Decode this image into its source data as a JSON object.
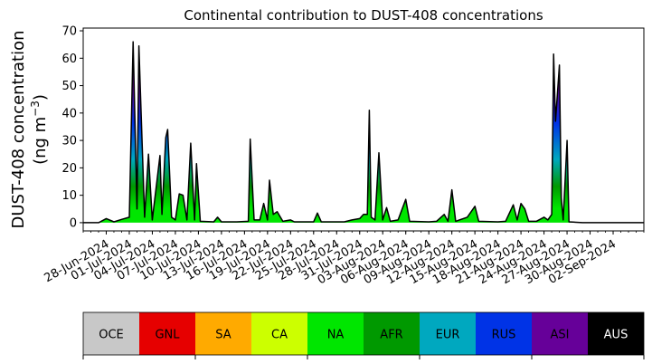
{
  "chart_data": {
    "type": "area",
    "title": "Continental contribution to DUST-408 concentrations",
    "ylabel_line1": "DUST-408 concentration",
    "ylabel_line2_prefix": "(ng m",
    "ylabel_line2_sup": "−3",
    "ylabel_line2_suffix": ")",
    "xlabel": "",
    "ylim": [
      -3,
      71
    ],
    "yticks": [
      0,
      10,
      20,
      30,
      40,
      50,
      60,
      70
    ],
    "x_range": [
      "2024-06-25",
      "2024-09-06"
    ],
    "xtick_labels": [
      "28-Jun-2024",
      "01-Jul-2024",
      "04-Jul-2024",
      "07-Jul-2024",
      "10-Jul-2024",
      "13-Jul-2024",
      "16-Jul-2024",
      "19-Jul-2024",
      "22-Jul-2024",
      "25-Jul-2024",
      "28-Jul-2024",
      "31-Jul-2024",
      "03-Aug-2024",
      "06-Aug-2024",
      "09-Aug-2024",
      "12-Aug-2024",
      "15-Aug-2024",
      "18-Aug-2024",
      "21-Aug-2024",
      "24-Aug-2024",
      "27-Aug-2024",
      "30-Aug-2024",
      "02-Sep-2024"
    ],
    "grid": false,
    "legend_placement": "below",
    "categories": [
      "OCE",
      "GNL",
      "SA",
      "CA",
      "NA",
      "AFR",
      "EUR",
      "RUS",
      "ASI",
      "AUS"
    ],
    "colors": [
      "#c8c8c8",
      "#e60000",
      "#ffaa00",
      "#ccff00",
      "#00e600",
      "#009900",
      "#00a8bf",
      "#0033e6",
      "#660099",
      "#000000"
    ],
    "legend_text_colors": [
      "#000000",
      "#000000",
      "#000000",
      "#000000",
      "#000000",
      "#000000",
      "#000000",
      "#000000",
      "#000000",
      "#ffffff"
    ],
    "total": [
      {
        "x": "2024-06-25",
        "y": 0
      },
      {
        "x": "2024-06-27",
        "y": 0
      },
      {
        "x": "2024-06-28",
        "y": 1.5
      },
      {
        "x": "2024-06-29",
        "y": 0.3
      },
      {
        "x": "2024-06-30",
        "y": 1.2
      },
      {
        "x": "2024-07-01",
        "y": 2
      },
      {
        "x": "2024-07-01T12:00",
        "y": 66
      },
      {
        "x": "2024-07-02",
        "y": 5
      },
      {
        "x": "2024-07-02T06:00",
        "y": 64.5
      },
      {
        "x": "2024-07-03",
        "y": 2
      },
      {
        "x": "2024-07-03T12:00",
        "y": 25
      },
      {
        "x": "2024-07-04",
        "y": 1
      },
      {
        "x": "2024-07-05",
        "y": 24.5
      },
      {
        "x": "2024-07-05T06:00",
        "y": 3
      },
      {
        "x": "2024-07-05T18:00",
        "y": 31
      },
      {
        "x": "2024-07-06",
        "y": 34
      },
      {
        "x": "2024-07-06T12:00",
        "y": 2
      },
      {
        "x": "2024-07-07",
        "y": 1
      },
      {
        "x": "2024-07-07T12:00",
        "y": 10.5
      },
      {
        "x": "2024-07-08",
        "y": 10
      },
      {
        "x": "2024-07-08T12:00",
        "y": 1
      },
      {
        "x": "2024-07-09",
        "y": 29
      },
      {
        "x": "2024-07-09T12:00",
        "y": 1
      },
      {
        "x": "2024-07-09T18:00",
        "y": 21.5
      },
      {
        "x": "2024-07-10T06:00",
        "y": 0.5
      },
      {
        "x": "2024-07-12",
        "y": 0.3
      },
      {
        "x": "2024-07-12T12:00",
        "y": 2
      },
      {
        "x": "2024-07-13",
        "y": 0.3
      },
      {
        "x": "2024-07-15",
        "y": 0.3
      },
      {
        "x": "2024-07-16T12:00",
        "y": 0.5
      },
      {
        "x": "2024-07-16T18:00",
        "y": 30.5
      },
      {
        "x": "2024-07-17T06:00",
        "y": 1
      },
      {
        "x": "2024-07-18",
        "y": 1
      },
      {
        "x": "2024-07-18T12:00",
        "y": 7
      },
      {
        "x": "2024-07-19",
        "y": 1
      },
      {
        "x": "2024-07-19T06:00",
        "y": 15.5
      },
      {
        "x": "2024-07-19T18:00",
        "y": 3
      },
      {
        "x": "2024-07-20T06:00",
        "y": 4
      },
      {
        "x": "2024-07-21",
        "y": 0.5
      },
      {
        "x": "2024-07-22",
        "y": 1
      },
      {
        "x": "2024-07-22T12:00",
        "y": 0.3
      },
      {
        "x": "2024-07-25",
        "y": 0.3
      },
      {
        "x": "2024-07-25T12:00",
        "y": 3.5
      },
      {
        "x": "2024-07-26",
        "y": 0.3
      },
      {
        "x": "2024-07-29",
        "y": 0.3
      },
      {
        "x": "2024-07-30",
        "y": 1
      },
      {
        "x": "2024-07-31",
        "y": 1.5
      },
      {
        "x": "2024-07-31T12:00",
        "y": 3
      },
      {
        "x": "2024-08-01",
        "y": 3
      },
      {
        "x": "2024-08-01T06:00",
        "y": 41
      },
      {
        "x": "2024-08-01T12:00",
        "y": 2
      },
      {
        "x": "2024-08-02",
        "y": 1
      },
      {
        "x": "2024-08-02T12:00",
        "y": 25.5
      },
      {
        "x": "2024-08-03",
        "y": 1
      },
      {
        "x": "2024-08-03T12:00",
        "y": 5.5
      },
      {
        "x": "2024-08-04",
        "y": 0.5
      },
      {
        "x": "2024-08-05",
        "y": 1
      },
      {
        "x": "2024-08-06",
        "y": 8.5
      },
      {
        "x": "2024-08-06T12:00",
        "y": 0.5
      },
      {
        "x": "2024-08-09",
        "y": 0.3
      },
      {
        "x": "2024-08-10",
        "y": 0.5
      },
      {
        "x": "2024-08-11",
        "y": 3
      },
      {
        "x": "2024-08-11T12:00",
        "y": 0.5
      },
      {
        "x": "2024-08-12",
        "y": 12
      },
      {
        "x": "2024-08-12T12:00",
        "y": 0.5
      },
      {
        "x": "2024-08-14",
        "y": 2
      },
      {
        "x": "2024-08-15",
        "y": 6
      },
      {
        "x": "2024-08-15T12:00",
        "y": 0.5
      },
      {
        "x": "2024-08-18",
        "y": 0.3
      },
      {
        "x": "2024-08-19",
        "y": 0.5
      },
      {
        "x": "2024-08-20",
        "y": 6.5
      },
      {
        "x": "2024-08-20T12:00",
        "y": 1
      },
      {
        "x": "2024-08-21",
        "y": 7
      },
      {
        "x": "2024-08-21T12:00",
        "y": 5
      },
      {
        "x": "2024-08-22",
        "y": 0.5
      },
      {
        "x": "2024-08-23",
        "y": 0.5
      },
      {
        "x": "2024-08-24",
        "y": 2
      },
      {
        "x": "2024-08-24T12:00",
        "y": 1
      },
      {
        "x": "2024-08-25",
        "y": 3
      },
      {
        "x": "2024-08-25T06:00",
        "y": 61.5
      },
      {
        "x": "2024-08-25T12:00",
        "y": 37
      },
      {
        "x": "2024-08-26",
        "y": 57.5
      },
      {
        "x": "2024-08-26T06:00",
        "y": 9
      },
      {
        "x": "2024-08-26T12:00",
        "y": 1
      },
      {
        "x": "2024-08-27",
        "y": 30
      },
      {
        "x": "2024-08-27T06:00",
        "y": 0.3
      },
      {
        "x": "2024-08-29",
        "y": 0
      },
      {
        "x": "2024-09-06",
        "y": 0
      }
    ]
  }
}
